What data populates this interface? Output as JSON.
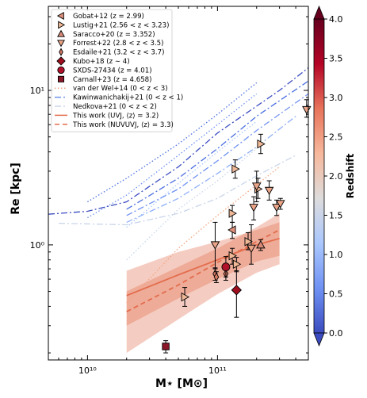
{
  "chart_data": {
    "type": "scatter",
    "xlabel": "M⋆ [M⊙]",
    "ylabel": "Re [kpc]",
    "xscale": "log",
    "yscale": "log",
    "xlim": [
      5000000000.0,
      500000000000.0
    ],
    "ylim": [
      0.18,
      35
    ],
    "x_ticks": [
      {
        "value": 10000000000.0,
        "label": "10¹⁰"
      },
      {
        "value": 100000000000.0,
        "label": "10¹¹"
      }
    ],
    "y_ticks": [
      {
        "value": 1,
        "label": "10⁰"
      },
      {
        "value": 10,
        "label": "10¹"
      }
    ],
    "colorbar": {
      "label": "Redshift",
      "range": [
        0,
        4
      ],
      "ticks": [
        "0.0",
        "0.5",
        "1.0",
        "1.5",
        "2.0",
        "2.5",
        "3.0",
        "3.5",
        "4.0"
      ],
      "colormap": [
        "#3b4cc0",
        "#6f92f3",
        "#aac7fd",
        "#dddcdc",
        "#f7b89c",
        "#e7745b",
        "#b40426",
        "#67001f"
      ]
    },
    "legend": [
      {
        "label": "Gobat+12 (z = 2.99)",
        "marker": "triangle-left",
        "color": "#e0907a"
      },
      {
        "label": "Lustig+21 (2.56 < z < 3.23)",
        "marker": "triangle-right",
        "color": "#f0b896"
      },
      {
        "label": "Saracco+20 (z = 3.352)",
        "marker": "triangle-up",
        "color": "#d98a78"
      },
      {
        "label": "Forrest+22 (2.8 < z < 3.5)",
        "marker": "triangle-down",
        "color": "#eaa488"
      },
      {
        "label": "Esdaile+21 (3.2 < z < 3.7)",
        "marker": "diamond-thin",
        "color": "#d77a65"
      },
      {
        "label": "Kubo+18 (z ∼ 4)",
        "marker": "diamond",
        "color": "#9e0e1e"
      },
      {
        "label": "SXDS-27434 (z = 4.01)",
        "marker": "circle",
        "color": "#b0102a"
      },
      {
        "label": "Carnall+23 (z = 4.658)",
        "marker": "square",
        "color": "#8a1628"
      },
      {
        "label": "van der Wel+14 (0 < z < 3)",
        "marker": "line-dotted",
        "color": "#f4a582"
      },
      {
        "label": "Kawinwanichakij+21 (0 < z < 1)",
        "marker": "line-dashdot",
        "color": "#6f92f3"
      },
      {
        "label": "Nedkova+21 (0 < z < 2)",
        "marker": "line-dashdot",
        "color": "#c9d5ea"
      },
      {
        "label": "This work (UVJ, ⟨z⟩ = 3.2)",
        "marker": "line-solid",
        "color": "#e36c4c"
      },
      {
        "label": "This work (NUVUVJ, ⟨z⟩ = 3.3)",
        "marker": "line-dashed",
        "color": "#e36c4c"
      }
    ],
    "series": [
      {
        "name": "Gobat+12 (z = 2.99)",
        "marker": "triangle-left",
        "color": "#e0907a",
        "points": [
          {
            "x": 130000000000.0,
            "y": 1.25,
            "yerr": [
              0.15,
              0.15
            ]
          }
        ]
      },
      {
        "name": "Lustig+21 (2.56 < z < 3.23)",
        "marker": "triangle-right",
        "color": "#f0b896",
        "points": [
          {
            "x": 56000000000.0,
            "y": 0.46,
            "yerr": [
              0.06,
              0.07
            ]
          },
          {
            "x": 130000000000.0,
            "y": 1.6,
            "yerr": [
              0.2,
              0.2
            ]
          },
          {
            "x": 137000000000.0,
            "y": 3.1,
            "yerr": [
              0.4,
              0.45
            ]
          },
          {
            "x": 130000000000.0,
            "y": 0.85,
            "yerr": [
              0.1,
              0.1
            ]
          },
          {
            "x": 140000000000.0,
            "y": 0.75,
            "yerr": [
              0.08,
              0.08
            ]
          },
          {
            "x": 172000000000.0,
            "y": 1.05,
            "yerr": [
              0.12,
              0.15
            ]
          },
          {
            "x": 205000000000.0,
            "y": 2.3,
            "yerr": [
              0.3,
              0.4
            ]
          },
          {
            "x": 215000000000.0,
            "y": 4.5,
            "yerr": [
              0.6,
              0.7
            ]
          }
        ]
      },
      {
        "name": "Saracco+20 (z = 3.352)",
        "marker": "triangle-up",
        "color": "#d98a78",
        "points": [
          {
            "x": 215000000000.0,
            "y": 1.0,
            "yerr": [
              0.08,
              0.08
            ]
          }
        ]
      },
      {
        "name": "Forrest+22 (2.8 < z < 3.5)",
        "marker": "triangle-down",
        "color": "#eaa488",
        "points": [
          {
            "x": 96000000000.0,
            "y": 1.0,
            "yerr": [
              0.3,
              0.4
            ]
          },
          {
            "x": 190000000000.0,
            "y": 1.75,
            "yerr": [
              0.3,
              0.3
            ]
          },
          {
            "x": 200000000000.0,
            "y": 2.4,
            "yerr": [
              0.5,
              0.6
            ]
          },
          {
            "x": 182000000000.0,
            "y": 0.95,
            "yerr": [
              0.2,
              0.4
            ]
          },
          {
            "x": 250000000000.0,
            "y": 2.25,
            "yerr": [
              0.3,
              0.35
            ]
          },
          {
            "x": 285000000000.0,
            "y": 1.75,
            "yerr": [
              0.2,
              0.2
            ]
          },
          {
            "x": 305000000000.0,
            "y": 1.85,
            "yerr": [
              0.15,
              0.15
            ]
          },
          {
            "x": 485000000000.0,
            "y": 7.5,
            "yerr": [
              0.8,
              1.2
            ]
          }
        ]
      },
      {
        "name": "Esdaile+21 (3.2 < z < 3.7)",
        "marker": "diamond-thin",
        "color": "#d77a65",
        "points": [
          {
            "x": 96000000000.0,
            "y": 0.65,
            "yerr": [
              0.06,
              0.06
            ]
          },
          {
            "x": 98000000000.0,
            "y": 0.62,
            "yerr": [
              0.05,
              0.05
            ]
          },
          {
            "x": 116000000000.0,
            "y": 0.65,
            "yerr": [
              0.06,
              0.06
            ]
          }
        ]
      },
      {
        "name": "Kubo+18 (z ∼ 4)",
        "marker": "diamond",
        "color": "#9e0e1e",
        "points": [
          {
            "x": 140000000000.0,
            "y": 0.51,
            "yerr": [
              0.17,
              0.17
            ]
          }
        ]
      },
      {
        "name": "SXDS-27434 (z = 4.01)",
        "marker": "circle",
        "color": "#b0102a",
        "points": [
          {
            "x": 116000000000.0,
            "y": 0.72,
            "yerr": [
              0.1,
              0.12
            ]
          }
        ]
      },
      {
        "name": "Carnall+23 (z = 4.658)",
        "marker": "square",
        "color": "#8a1628",
        "points": [
          {
            "x": 40000000000.0,
            "y": 0.22,
            "yerr": [
              0.02,
              0.02
            ]
          }
        ]
      }
    ],
    "relations": [
      {
        "name": "van der Wel+14 (0 < z < 3)",
        "style": "dotted",
        "color": "#4b6fe0",
        "points": [
          [
            10000000000.0,
            1.9
          ],
          [
            20000000000.0,
            2.7
          ],
          [
            50000000000.0,
            4.5
          ],
          [
            100000000000.0,
            7.0
          ],
          [
            200000000000.0,
            11.2
          ]
        ]
      },
      {
        "name": "van der Wel+14 (0 < z < 3)",
        "style": "dotted",
        "color": "#6f92f3",
        "points": [
          [
            10000000000.0,
            1.5
          ],
          [
            20000000000.0,
            2.1
          ],
          [
            50000000000.0,
            3.8
          ],
          [
            100000000000.0,
            6.0
          ],
          [
            200000000000.0,
            9.5
          ]
        ]
      },
      {
        "name": "van der Wel+14 (0 < z < 3)",
        "style": "dotted",
        "color": "#aac7fd",
        "points": [
          [
            20000000000.0,
            1.3
          ],
          [
            50000000000.0,
            2.5
          ],
          [
            100000000000.0,
            4.0
          ],
          [
            200000000000.0,
            6.3
          ]
        ]
      },
      {
        "name": "van der Wel+14 (0 < z < 3)",
        "style": "dotted",
        "color": "#c9d5ea",
        "points": [
          [
            20000000000.0,
            0.8
          ],
          [
            50000000000.0,
            1.7
          ],
          [
            100000000000.0,
            2.6
          ],
          [
            200000000000.0,
            4.2
          ]
        ]
      },
      {
        "name": "van der Wel+14 (0 < z < 3)",
        "style": "dotted",
        "color": "#f4a582",
        "points": [
          [
            20000000000.0,
            0.42
          ],
          [
            50000000000.0,
            0.95
          ],
          [
            100000000000.0,
            1.55
          ],
          [
            300000000000.0,
            3.2
          ]
        ]
      },
      {
        "name": "Kawinwanichakij+21 (0 < z < 1)",
        "style": "dashdot",
        "color": "#3b4cc0",
        "points": [
          [
            5000000000.0,
            1.58
          ],
          [
            10000000000.0,
            1.65
          ],
          [
            20000000000.0,
            1.9
          ],
          [
            50000000000.0,
            3.2
          ],
          [
            100000000000.0,
            5.3
          ],
          [
            300000000000.0,
            10.0
          ],
          [
            500000000000.0,
            14.0
          ]
        ]
      },
      {
        "name": "Kawinwanichakij+21 (0 < z < 1)",
        "style": "dashdot",
        "color": "#4b6fe0",
        "points": [
          [
            20000000000.0,
            1.7
          ],
          [
            50000000000.0,
            2.7
          ],
          [
            100000000000.0,
            4.2
          ],
          [
            200000000000.0,
            6.8
          ],
          [
            500000000000.0,
            11.5
          ]
        ]
      },
      {
        "name": "Kawinwanichakij+21 (0 < z < 1)",
        "style": "dashdot",
        "color": "#6f92f3",
        "points": [
          [
            20000000000.0,
            1.55
          ],
          [
            50000000000.0,
            2.3
          ],
          [
            100000000000.0,
            3.5
          ],
          [
            200000000000.0,
            5.5
          ],
          [
            500000000000.0,
            9.5
          ]
        ]
      },
      {
        "name": "Kawinwanichakij+21 (0 < z < 1)",
        "style": "dashdot",
        "color": "#8fb0f7",
        "points": [
          [
            20000000000.0,
            1.4
          ],
          [
            50000000000.0,
            2.0
          ],
          [
            100000000000.0,
            2.9
          ],
          [
            200000000000.0,
            4.3
          ],
          [
            400000000000.0,
            6.8
          ]
        ]
      },
      {
        "name": "Nedkova+21 (0 < z < 2)",
        "style": "dashdot",
        "color": "#c9d5ea",
        "points": [
          [
            6000000000.0,
            1.38
          ],
          [
            20000000000.0,
            1.35
          ],
          [
            50000000000.0,
            1.6
          ],
          [
            100000000000.0,
            2.0
          ],
          [
            200000000000.0,
            2.8
          ],
          [
            400000000000.0,
            3.8
          ]
        ]
      },
      {
        "name": "This work (UVJ, ⟨z⟩ = 3.2)",
        "style": "solid",
        "color": "#e36c4c",
        "points": [
          [
            20000000000.0,
            0.47
          ],
          [
            50000000000.0,
            0.64
          ],
          [
            100000000000.0,
            0.8
          ],
          [
            200000000000.0,
            1.0
          ],
          [
            300000000000.0,
            1.1
          ]
        ],
        "band_low": [
          0.3,
          0.45,
          0.6,
          0.78,
          0.85
        ],
        "band_high": [
          0.68,
          0.9,
          1.05,
          1.25,
          1.4
        ]
      },
      {
        "name": "This work (NUVUVJ, ⟨z⟩ = 3.3)",
        "style": "dashed",
        "color": "#e36c4c",
        "points": [
          [
            20000000000.0,
            0.37
          ],
          [
            50000000000.0,
            0.55
          ],
          [
            100000000000.0,
            0.77
          ],
          [
            200000000000.0,
            1.05
          ],
          [
            300000000000.0,
            1.25
          ]
        ],
        "band_low": [
          0.2,
          0.33,
          0.48,
          0.66,
          0.75
        ],
        "band_high": [
          0.5,
          0.72,
          0.95,
          1.3,
          1.6
        ]
      }
    ]
  }
}
